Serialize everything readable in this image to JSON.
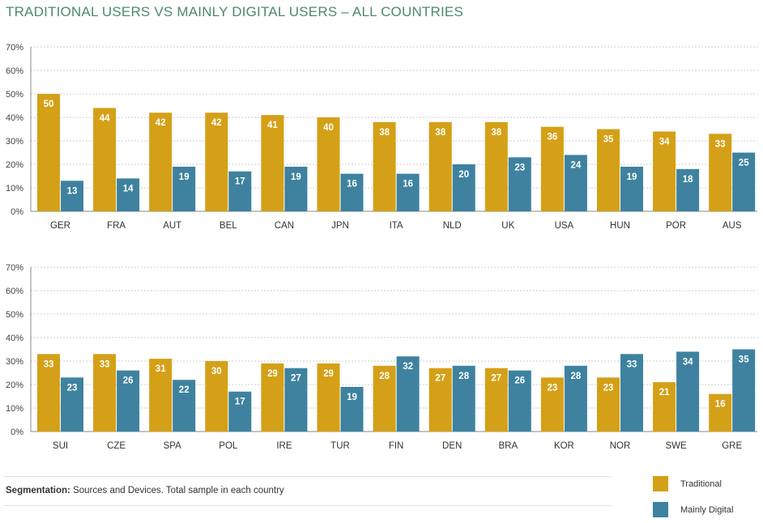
{
  "title": "TRADITIONAL USERS VS MAINLY DIGITAL USERS – ALL COUNTRIES",
  "colors": {
    "traditional": "#d4a017",
    "digital": "#3e82a0"
  },
  "footnote": {
    "label": "Segmentation:",
    "text": " Sources and Devices. Total sample in each country"
  },
  "legend": [
    {
      "name": "Traditional",
      "color": "#d4a017"
    },
    {
      "name": "Mainly Digital",
      "color": "#3e82a0"
    }
  ],
  "chart_data": [
    {
      "type": "bar",
      "categories": [
        "GER",
        "FRA",
        "AUT",
        "BEL",
        "CAN",
        "JPN",
        "ITA",
        "NLD",
        "UK",
        "USA",
        "HUN",
        "POR",
        "AUS"
      ],
      "series": [
        {
          "name": "Traditional",
          "values": [
            50,
            44,
            42,
            42,
            41,
            40,
            38,
            38,
            38,
            36,
            35,
            34,
            33
          ]
        },
        {
          "name": "Mainly Digital",
          "values": [
            13,
            14,
            19,
            17,
            19,
            16,
            16,
            20,
            23,
            24,
            19,
            18,
            25
          ]
        }
      ],
      "yticks": [
        "0%",
        "10%",
        "20%",
        "30%",
        "40%",
        "50%",
        "60%",
        "70%"
      ],
      "ylim": [
        0,
        70
      ]
    },
    {
      "type": "bar",
      "categories": [
        "SUI",
        "CZE",
        "SPA",
        "POL",
        "IRE",
        "TUR",
        "FIN",
        "DEN",
        "BRA",
        "KOR",
        "NOR",
        "SWE",
        "GRE"
      ],
      "series": [
        {
          "name": "Traditional",
          "values": [
            33,
            33,
            31,
            30,
            29,
            29,
            28,
            27,
            27,
            23,
            23,
            21,
            16
          ]
        },
        {
          "name": "Mainly Digital",
          "values": [
            23,
            26,
            22,
            17,
            27,
            19,
            32,
            28,
            26,
            28,
            33,
            34,
            35
          ]
        }
      ],
      "yticks": [
        "0%",
        "10%",
        "20%",
        "30%",
        "40%",
        "50%",
        "60%",
        "70%"
      ],
      "ylim": [
        0,
        70
      ]
    }
  ]
}
